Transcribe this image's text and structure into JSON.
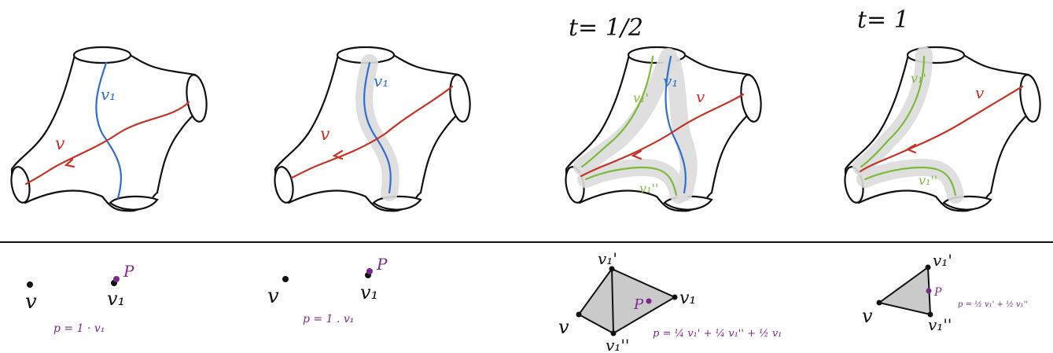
{
  "colors": {
    "outline": "#111111",
    "curve_v": "#c73325",
    "curve_v1": "#2f6fd1",
    "curve_v1_split": "#7dba3c",
    "point_p": "#7a2a8a",
    "shading": "#dcdcdc"
  },
  "top_panels": [
    {
      "title": "",
      "curve_v_label": "v",
      "curve_v1_label": "v₁"
    },
    {
      "title": "",
      "curve_v_label": "v",
      "curve_v1_label": "v₁"
    },
    {
      "title": "t= 1/2",
      "curve_v_label": "v",
      "curve_v1_label": "v₁",
      "split_upper_label": "v₁'",
      "split_lower_label": "v₁''"
    },
    {
      "title": "t= 1",
      "curve_v_label": "v",
      "split_upper_label": "v₁'",
      "split_lower_label": "v₁''"
    }
  ],
  "bottom_panels": [
    {
      "vertex_v": "v",
      "vertex_v1": "v₁",
      "point_label": "P",
      "formula": "p = 1 · v₁"
    },
    {
      "vertex_v": "v",
      "vertex_v1": "v₁",
      "point_label": "P",
      "formula": "p = 1 . v₁"
    },
    {
      "vertex_v": "v",
      "vertex_v1": "v₁",
      "vertex_v1p": "v₁'",
      "vertex_v1pp": "v₁''",
      "point_label": "P",
      "formula": "p = ¼ v₁' + ¼ v₁'' + ½ v₁"
    },
    {
      "vertex_v": "v",
      "vertex_v1p": "v₁'",
      "vertex_v1pp": "v₁''",
      "point_label": "P",
      "formula": "p = ½ v₁' + ½ v₁''"
    }
  ]
}
